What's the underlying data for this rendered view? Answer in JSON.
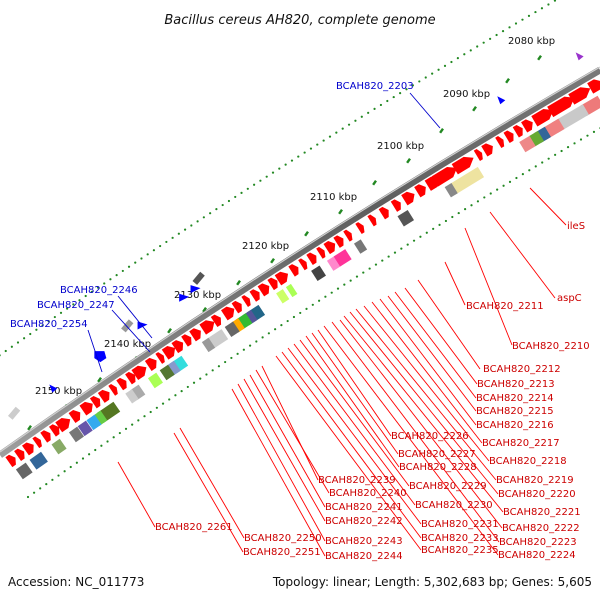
{
  "title": "Bacillus cereus AH820, complete genome",
  "footer": {
    "accession": "Accession: NC_011773",
    "summary": "Topology: linear; Length: 5,302,683 bp; Genes: 5,605"
  },
  "ticks": [
    "2080 kbp",
    "2090 kbp",
    "2100 kbp",
    "2110 kbp",
    "2120 kbp",
    "2130 kbp",
    "2140 kbp",
    "2150 kbp"
  ],
  "labels_blue": [
    "BCAH820_2203",
    "BCAH820_2246",
    "BCAH820_2247",
    "BCAH820_2254"
  ],
  "labels_red": [
    "ileS",
    "aspC",
    "BCAH820_2211",
    "BCAH820_2210",
    "BCAH820_2212",
    "BCAH820_2213",
    "BCAH820_2214",
    "BCAH820_2215",
    "BCAH820_2216",
    "BCAH820_2226",
    "BCAH820_2217",
    "BCAH820_2227",
    "BCAH820_2218",
    "BCAH820_2228",
    "BCAH820_2239",
    "BCAH820_2219",
    "BCAH820_2229",
    "BCAH820_2240",
    "BCAH820_2220",
    "BCAH820_2230",
    "BCAH820_2241",
    "BCAH820_2221",
    "BCAH820_2242",
    "BCAH820_2231",
    "BCAH820_2222",
    "BCAH820_2261",
    "BCAH820_2233",
    "BCAH820_2223",
    "BCAH820_2250",
    "BCAH820_2243",
    "BCAH820_2235",
    "BCAH820_2224",
    "BCAH820_2251",
    "BCAH820_2244"
  ],
  "colors": {
    "forward_gene": "#ff0000",
    "reverse_gene": "#0000ff",
    "tick": "#228822",
    "backbone": "#777777",
    "blue_label": "#0000cc",
    "red_label": "#cc0000"
  }
}
